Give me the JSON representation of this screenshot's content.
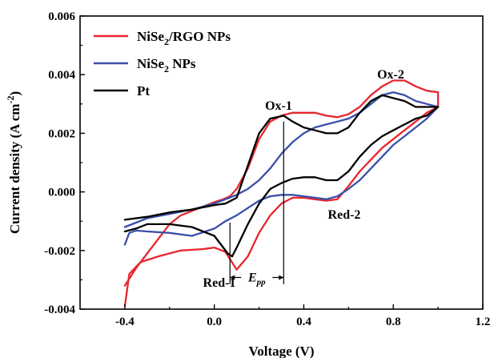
{
  "chart_data": {
    "type": "line",
    "xlabel": "Voltage (V)",
    "ylabel": "Current density (A cm",
    "ylabel_sup": "-2",
    "ylabel_end": ")",
    "xlim": [
      -0.6,
      1.2
    ],
    "ylim": [
      -0.004,
      0.006
    ],
    "x_ticks": [
      -0.4,
      0.0,
      0.4,
      0.8,
      1.2
    ],
    "x_tick_labels": [
      "-0.4",
      "0.0",
      "0.4",
      "0.8",
      "1.2"
    ],
    "y_ticks": [
      -0.004,
      -0.002,
      0.0,
      0.002,
      0.004,
      0.006
    ],
    "y_tick_labels": [
      "-0.004",
      "-0.002",
      "0.000",
      "0.002",
      "0.004",
      "0.006"
    ],
    "grid": false,
    "legend_position": "top-left",
    "legend": [
      {
        "name_main": "NiSe",
        "name_sub": "2",
        "name_rest": "/RGO NPs",
        "color": "#e8262e"
      },
      {
        "name_main": "NiSe",
        "name_sub": "2",
        "name_rest": " NPs",
        "color": "#3a4fa8"
      },
      {
        "name_main": "Pt",
        "name_sub": "",
        "name_rest": "",
        "color": "#000000"
      }
    ],
    "annotations": {
      "ox1": "Ox-1",
      "ox2": "Ox-2",
      "red1": "Red-1",
      "red2": "Red-2",
      "epp_main": "E",
      "epp_sub": "pp"
    },
    "markers": {
      "red1_v": 0.07,
      "ox1_v": 0.31,
      "epp_y": -0.00292
    },
    "series": [
      {
        "name": "NiSe2/RGO NPs",
        "color": "#e8262e",
        "x": [
          -0.4,
          -0.38,
          -0.33,
          -0.25,
          -0.15,
          -0.05,
          0.0,
          0.05,
          0.1,
          0.15,
          0.2,
          0.25,
          0.3,
          0.35,
          0.4,
          0.45,
          0.5,
          0.55,
          0.6,
          0.65,
          0.7,
          0.75,
          0.8,
          0.85,
          0.9,
          0.95,
          1.0,
          1.0,
          0.95,
          0.9,
          0.85,
          0.8,
          0.75,
          0.7,
          0.65,
          0.6,
          0.55,
          0.5,
          0.45,
          0.4,
          0.35,
          0.3,
          0.25,
          0.2,
          0.15,
          0.1,
          0.07,
          0.04,
          0.0,
          -0.05,
          -0.1,
          -0.15,
          -0.2,
          -0.25,
          -0.3,
          -0.35,
          -0.4
        ],
        "y": [
          -0.0039,
          -0.0028,
          -0.0024,
          -0.0022,
          -0.002,
          -0.00195,
          -0.0019,
          -0.00205,
          -0.00265,
          -0.0022,
          -0.0014,
          -0.0008,
          -0.0004,
          -0.0002,
          -0.0002,
          -0.00025,
          -0.0003,
          -0.00025,
          0.0002,
          0.0007,
          0.0011,
          0.0015,
          0.0018,
          0.0021,
          0.0024,
          0.0027,
          0.0029,
          0.0034,
          0.00345,
          0.0036,
          0.0038,
          0.0038,
          0.0036,
          0.0033,
          0.0029,
          0.00265,
          0.00255,
          0.0026,
          0.0027,
          0.0027,
          0.0027,
          0.0026,
          0.0024,
          0.0018,
          0.0008,
          0.0001,
          -0.00015,
          -0.00025,
          -0.00035,
          -0.0005,
          -0.00065,
          -0.0008,
          -0.0011,
          -0.0016,
          -0.0021,
          -0.0026,
          -0.0032
        ]
      },
      {
        "name": "NiSe2 NPs",
        "color": "#3a4fa8",
        "x": [
          -0.4,
          -0.38,
          -0.35,
          -0.3,
          -0.2,
          -0.1,
          0.0,
          0.05,
          0.1,
          0.15,
          0.2,
          0.25,
          0.3,
          0.35,
          0.4,
          0.45,
          0.5,
          0.55,
          0.6,
          0.65,
          0.7,
          0.75,
          0.8,
          0.85,
          0.9,
          0.95,
          1.0,
          0.95,
          0.9,
          0.85,
          0.8,
          0.75,
          0.7,
          0.65,
          0.6,
          0.55,
          0.5,
          0.45,
          0.4,
          0.35,
          0.3,
          0.25,
          0.2,
          0.15,
          0.1,
          0.05,
          0.0,
          -0.1,
          -0.2,
          -0.3,
          -0.4
        ],
        "y": [
          -0.0018,
          -0.0014,
          -0.00132,
          -0.00135,
          -0.0014,
          -0.0015,
          -0.00125,
          -0.001,
          -0.0008,
          -0.00055,
          -0.0003,
          -0.00015,
          -0.0001,
          -0.0001,
          -0.00015,
          -0.0002,
          -0.00025,
          -0.00015,
          0.0001,
          0.0004,
          0.0008,
          0.0012,
          0.0016,
          0.0019,
          0.0022,
          0.0025,
          0.0029,
          0.003,
          0.0031,
          0.0033,
          0.0034,
          0.0033,
          0.003,
          0.0027,
          0.0025,
          0.0024,
          0.0023,
          0.0022,
          0.002,
          0.0017,
          0.0013,
          0.0008,
          0.0004,
          0.0001,
          -0.0001,
          -0.00025,
          -0.0004,
          -0.0006,
          -0.00075,
          -0.0009,
          -0.0012
        ]
      },
      {
        "name": "Pt",
        "color": "#000000",
        "x": [
          -0.4,
          -0.35,
          -0.3,
          -0.2,
          -0.1,
          0.0,
          0.03,
          0.06,
          0.08,
          0.1,
          0.15,
          0.2,
          0.25,
          0.3,
          0.35,
          0.4,
          0.45,
          0.5,
          0.55,
          0.6,
          0.65,
          0.7,
          0.75,
          0.8,
          0.85,
          0.9,
          0.95,
          1.0,
          0.95,
          0.9,
          0.85,
          0.8,
          0.75,
          0.7,
          0.65,
          0.6,
          0.55,
          0.5,
          0.45,
          0.4,
          0.35,
          0.31,
          0.25,
          0.2,
          0.15,
          0.1,
          0.05,
          0.0,
          -0.1,
          -0.2,
          -0.3,
          -0.4
        ],
        "y": [
          -0.00135,
          -0.00125,
          -0.0011,
          -0.0011,
          -0.0012,
          -0.0015,
          -0.0018,
          -0.0021,
          -0.0022,
          -0.0019,
          -0.0011,
          -0.0004,
          0.0001,
          0.0003,
          0.00045,
          0.0005,
          0.0005,
          0.0004,
          0.0004,
          0.0007,
          0.0012,
          0.0016,
          0.0019,
          0.0021,
          0.0023,
          0.0025,
          0.0026,
          0.0029,
          0.0029,
          0.0029,
          0.0031,
          0.0032,
          0.0033,
          0.0031,
          0.0027,
          0.0022,
          0.002,
          0.002,
          0.0021,
          0.0022,
          0.0024,
          0.0026,
          0.0025,
          0.002,
          0.0009,
          -0.0002,
          -0.0004,
          -0.00045,
          -0.0006,
          -0.0007,
          -0.00085,
          -0.00095
        ]
      }
    ]
  }
}
